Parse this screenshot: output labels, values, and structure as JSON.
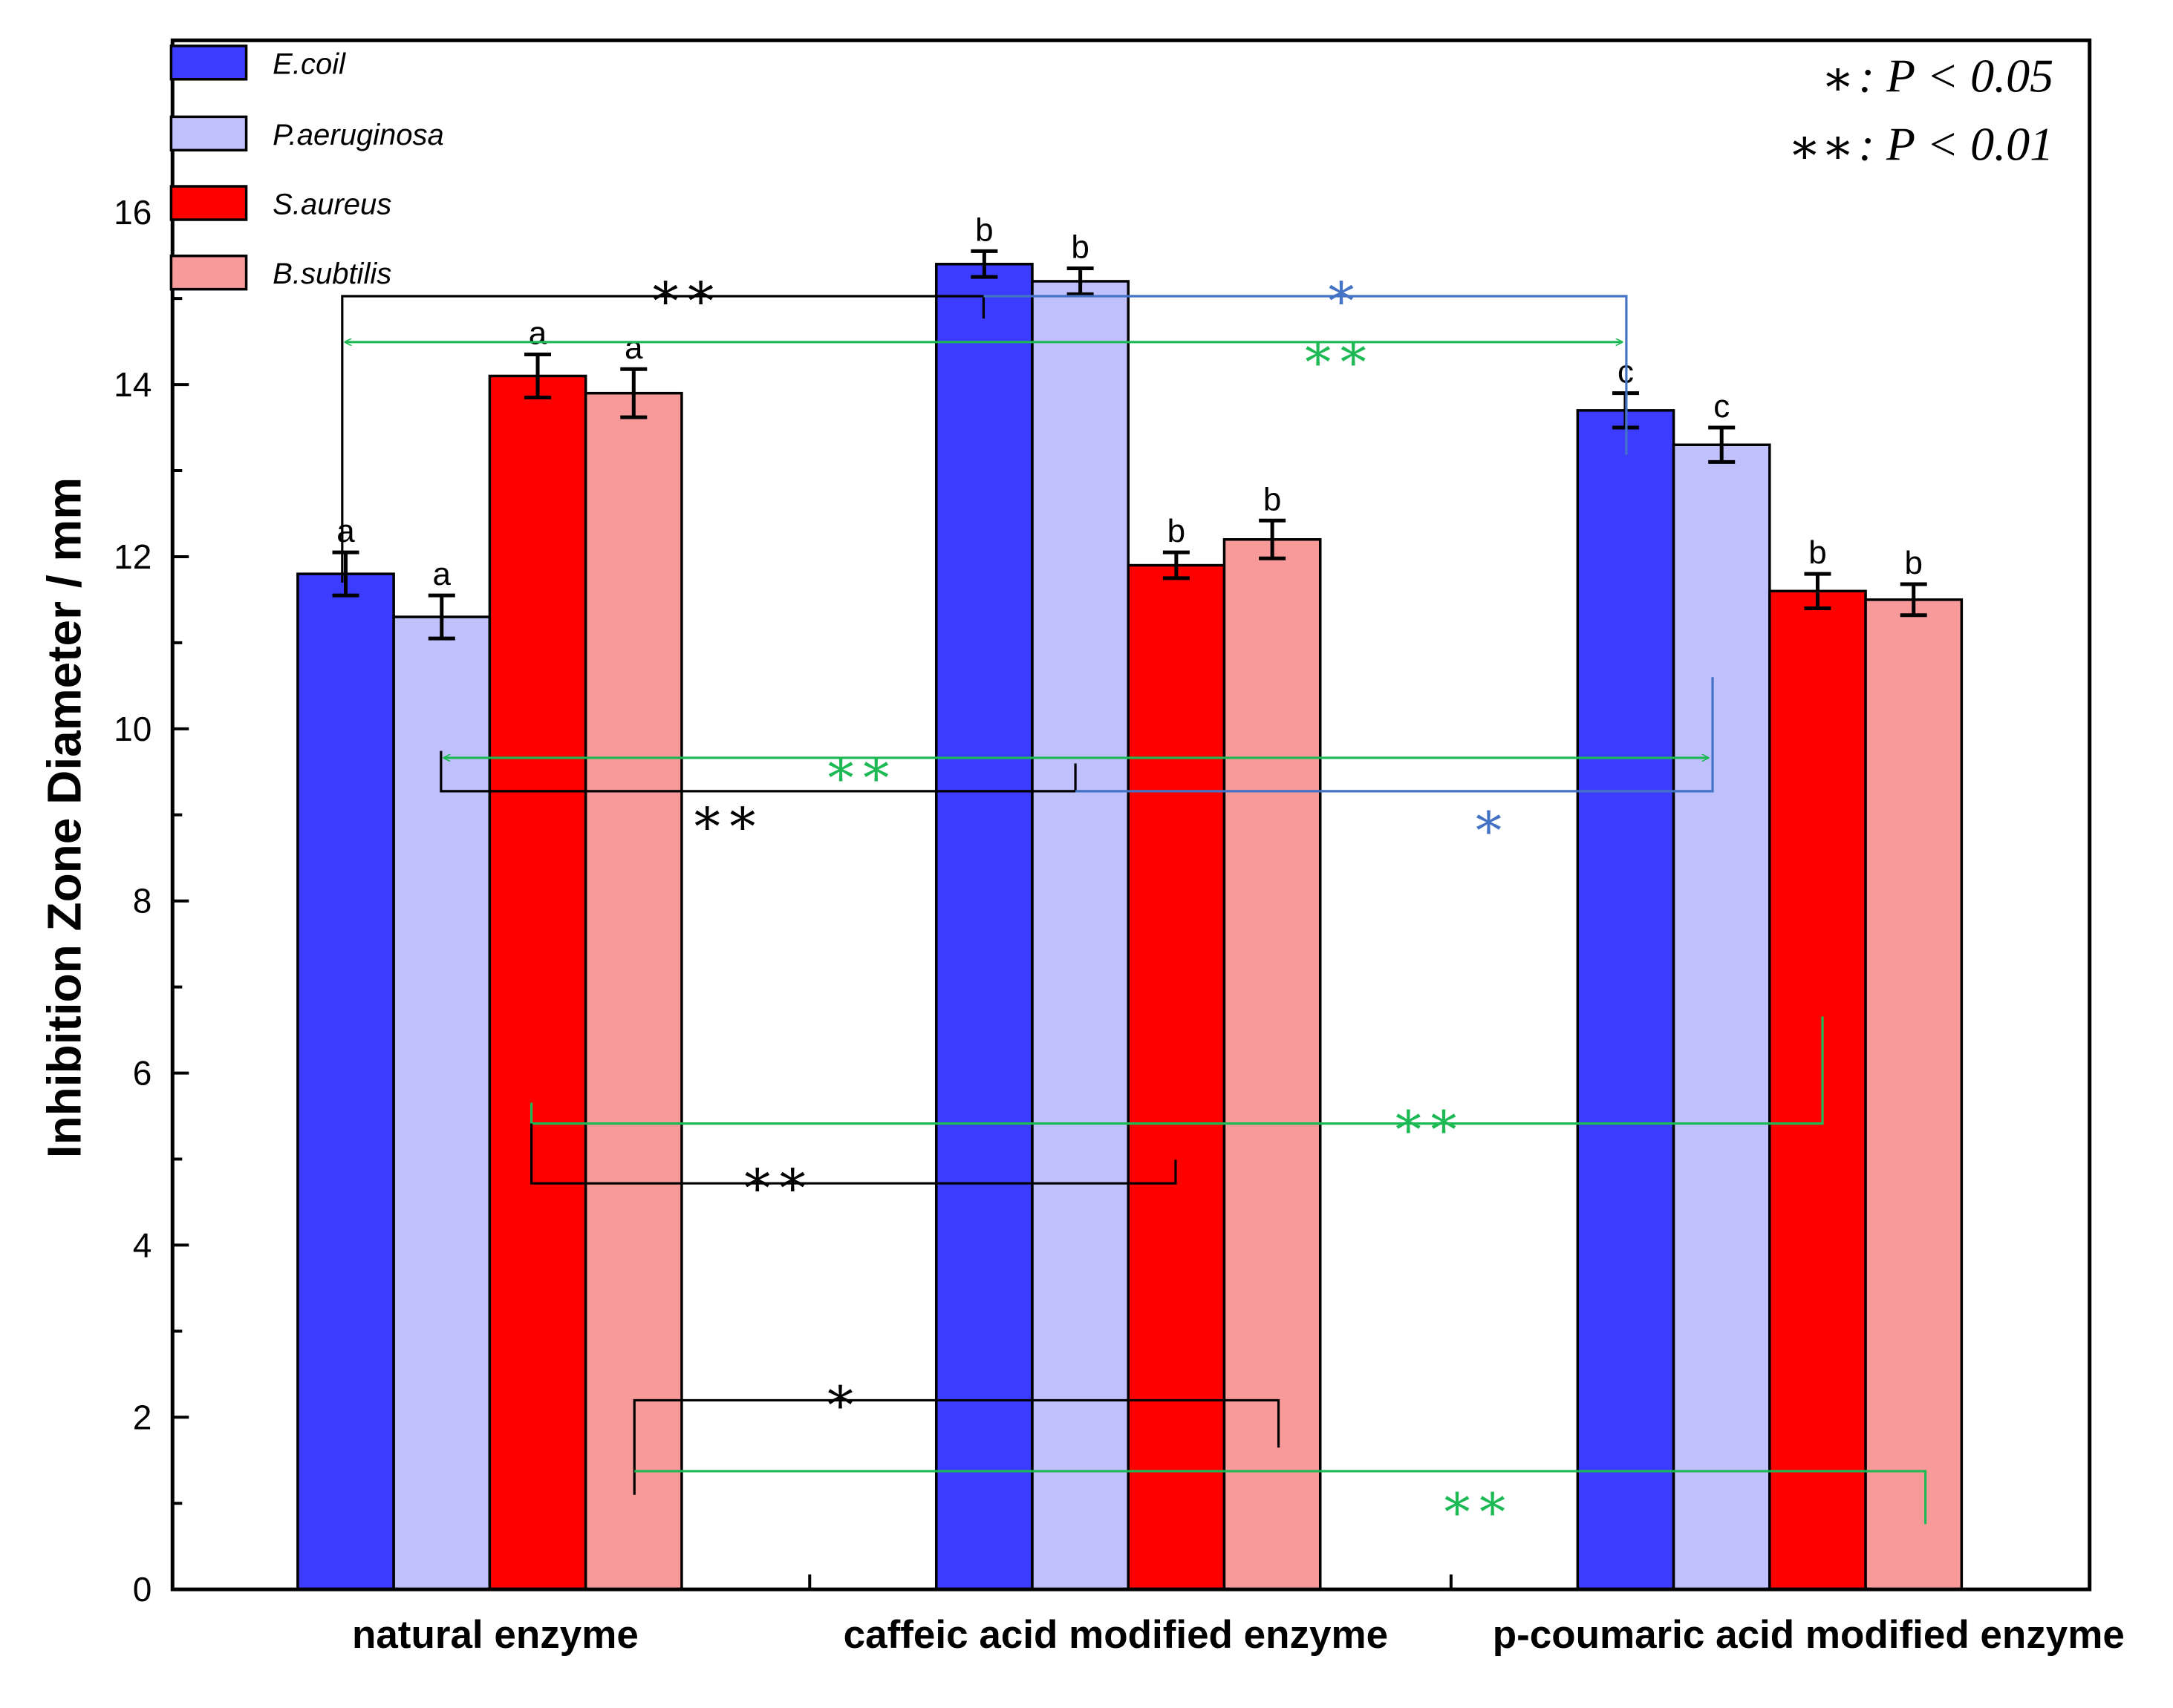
{
  "chart_data": {
    "type": "bar",
    "title": "",
    "xlabel": "",
    "ylabel": "Inhibition Zone Diameter / mm",
    "ylim": [
      0,
      18.0
    ],
    "yticks": [
      "0",
      "2",
      "4",
      "6",
      "8",
      "10",
      "12",
      "14",
      "16"
    ],
    "categories": [
      "natural enzyme",
      "caffeic acid modified enzyme",
      "p-coumaric acid modified enzyme"
    ],
    "series": [
      {
        "name": "E.coil",
        "color": "#3c3cff",
        "values": [
          11.8,
          15.4,
          13.7
        ],
        "errors": [
          0.25,
          0.15,
          0.2
        ],
        "letters": [
          "a",
          "b",
          "c"
        ]
      },
      {
        "name": "P.aeruginosa",
        "color": "#c0c0fc",
        "values": [
          11.3,
          15.2,
          13.3
        ],
        "errors": [
          0.25,
          0.15,
          0.2
        ],
        "letters": [
          "a",
          "b",
          "c"
        ]
      },
      {
        "name": "S.aureus",
        "color": "#ff0000",
        "values": [
          14.1,
          11.9,
          11.6
        ],
        "errors": [
          0.25,
          0.15,
          0.2
        ],
        "letters": [
          "a",
          "b",
          "b"
        ]
      },
      {
        "name": "B.subtilis",
        "color": "#f89a9a",
        "values": [
          13.9,
          12.2,
          11.5
        ],
        "errors": [
          0.28,
          0.22,
          0.18
        ],
        "letters": [
          "a",
          "b",
          "b"
        ]
      }
    ],
    "significance_legend": [
      {
        "symbol": "∗",
        "text": ": P < 0.05"
      },
      {
        "symbol": "∗∗",
        "text": ": P < 0.01"
      }
    ],
    "annotations": [
      {
        "label": "∗∗",
        "color": "#000000",
        "compare": [
          "natural enzyme E.coil",
          "caffeic acid modified enzyme E.coil"
        ]
      },
      {
        "label": "∗",
        "color": "#4472c4",
        "compare": [
          "caffeic acid modified enzyme E.coil",
          "p-coumaric acid modified enzyme E.coil"
        ]
      },
      {
        "label": "∗∗",
        "color": "#1db954",
        "compare": [
          "natural enzyme E.coil",
          "p-coumaric acid modified enzyme E.coil"
        ]
      },
      {
        "label": "∗∗",
        "color": "#1db954",
        "compare": [
          "natural enzyme P.aeruginosa",
          "p-coumaric acid modified enzyme P.aeruginosa"
        ]
      },
      {
        "label": "∗∗",
        "color": "#000000",
        "compare": [
          "natural enzyme P.aeruginosa",
          "caffeic acid modified enzyme P.aeruginosa"
        ]
      },
      {
        "label": "∗",
        "color": "#4472c4",
        "compare": [
          "caffeic acid modified enzyme P.aeruginosa",
          "p-coumaric acid modified enzyme P.aeruginosa"
        ]
      },
      {
        "label": "∗∗",
        "color": "#1db954",
        "compare": [
          "natural enzyme S.aureus",
          "p-coumaric acid modified enzyme S.aureus"
        ]
      },
      {
        "label": "∗∗",
        "color": "#000000",
        "compare": [
          "natural enzyme S.aureus",
          "caffeic acid modified enzyme S.aureus"
        ]
      },
      {
        "label": "∗",
        "color": "#000000",
        "compare": [
          "natural enzyme B.subtilis",
          "caffeic acid modified enzyme B.subtilis"
        ]
      },
      {
        "label": "∗∗",
        "color": "#1db954",
        "compare": [
          "natural enzyme B.subtilis",
          "p-coumaric acid modified enzyme B.subtilis"
        ]
      }
    ]
  }
}
